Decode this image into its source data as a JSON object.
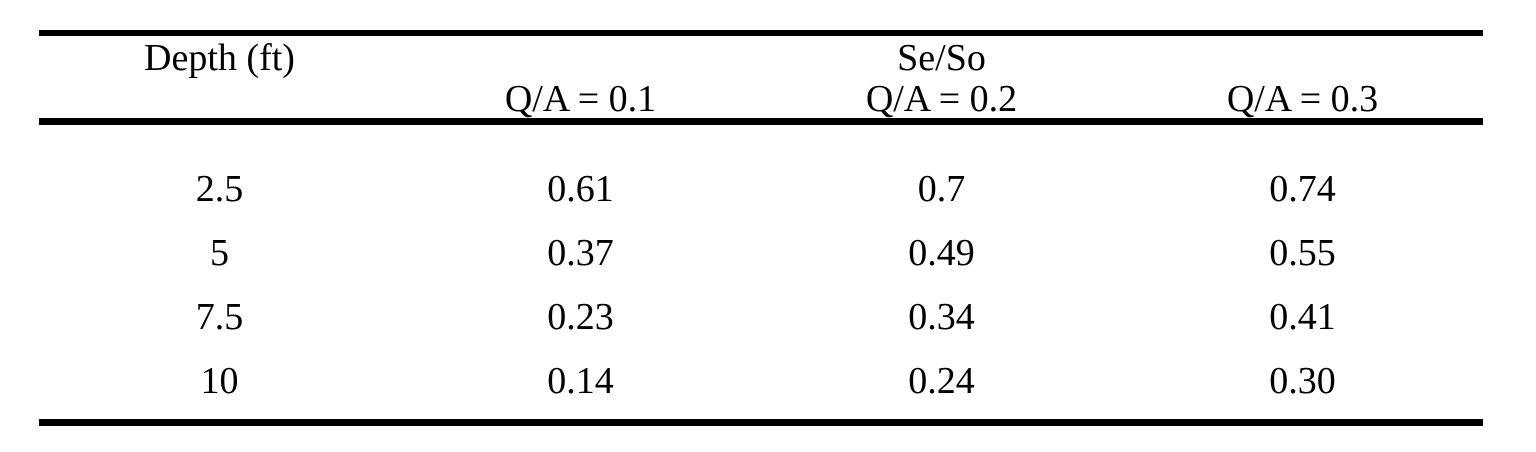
{
  "table": {
    "depth_header": "Depth (ft)",
    "span_header": "Se/So",
    "sub_headers": [
      "Q/A = 0.1",
      "Q/A = 0.2",
      "Q/A = 0.3"
    ],
    "rows": [
      {
        "depth": "2.5",
        "values": [
          "0.61",
          "0.7",
          "0.74"
        ]
      },
      {
        "depth": "5",
        "values": [
          "0.37",
          "0.49",
          "0.55"
        ]
      },
      {
        "depth": "7.5",
        "values": [
          "0.23",
          "0.34",
          "0.41"
        ]
      },
      {
        "depth": "10",
        "values": [
          "0.14",
          "0.24",
          "0.30"
        ]
      }
    ],
    "text_color": "#000000",
    "rule_color": "#000000",
    "background_color": "#ffffff"
  }
}
